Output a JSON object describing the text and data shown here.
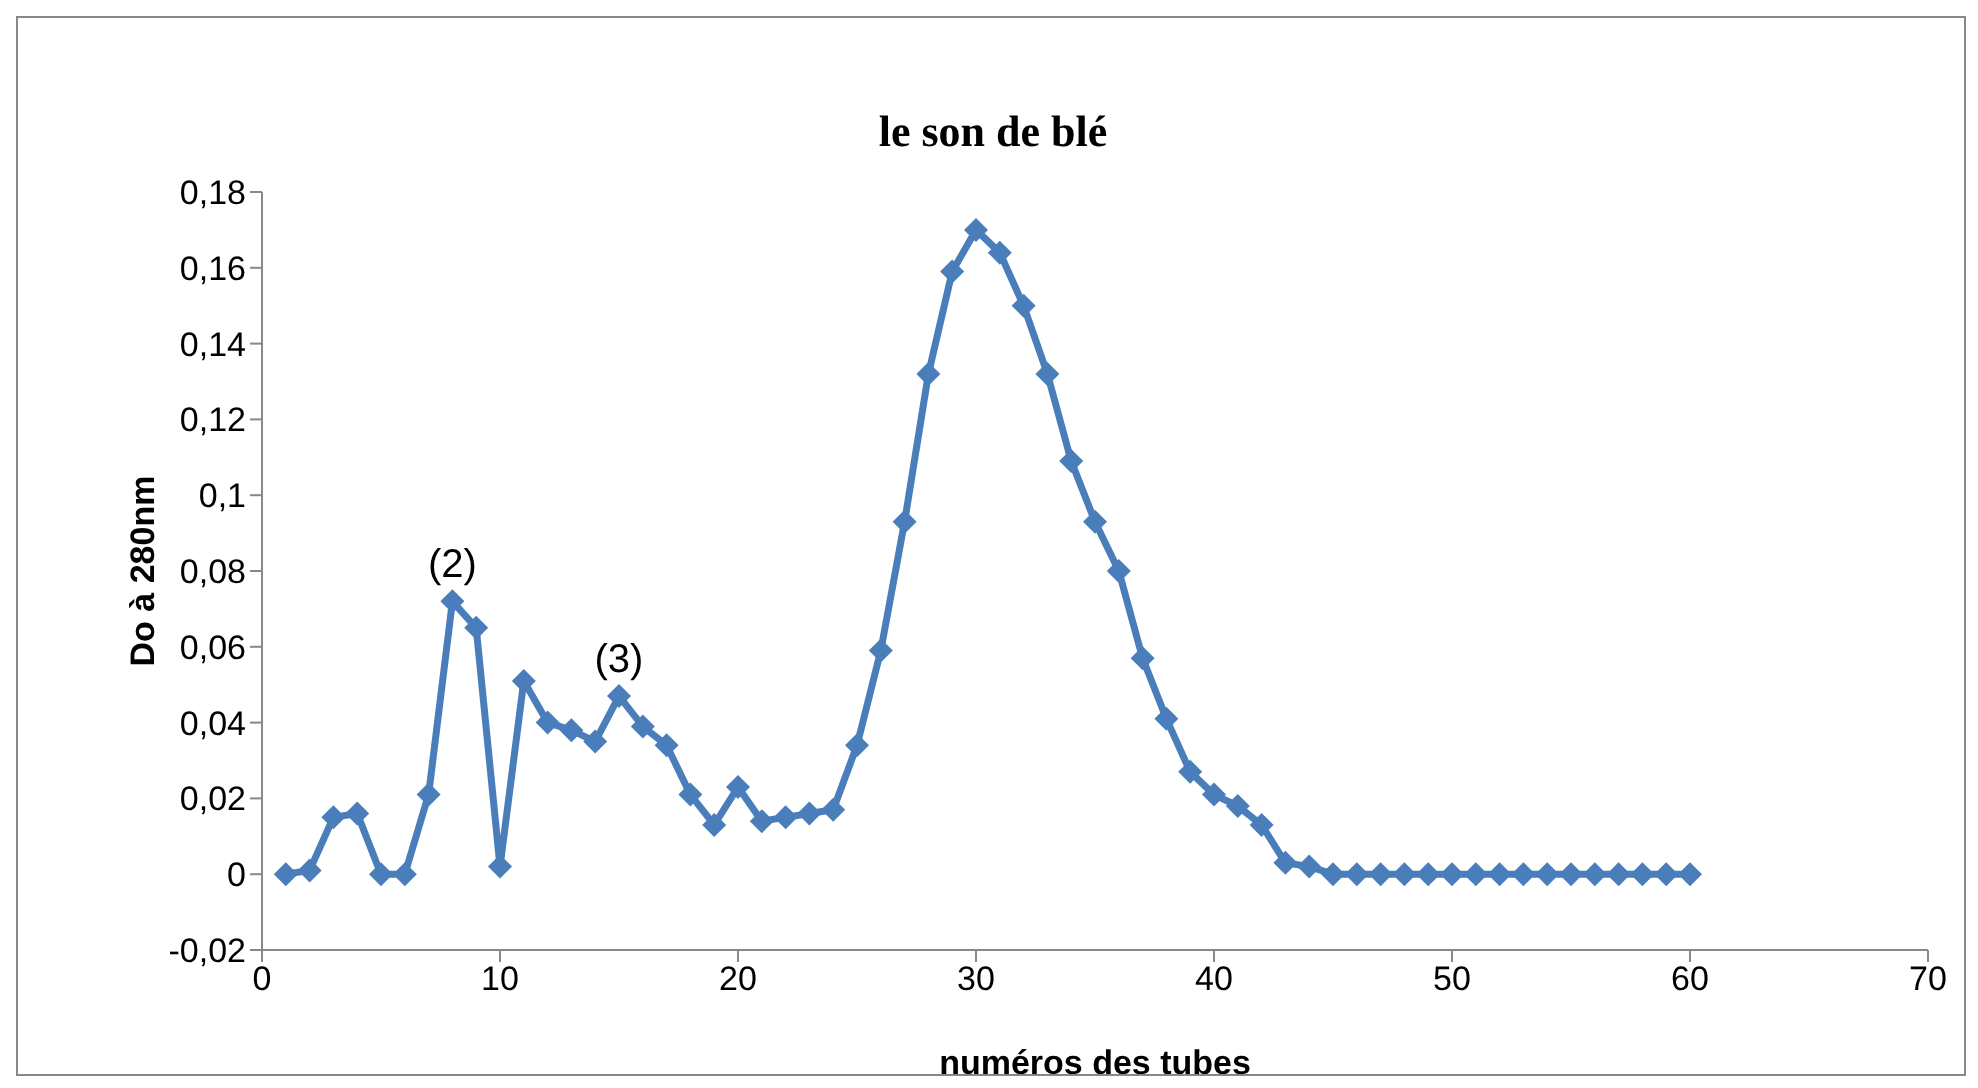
{
  "chart_data": {
    "type": "line",
    "title": "le son de blé",
    "xlabel": "numéros des tubes",
    "ylabel": "Do à 280nm",
    "x": [
      1,
      2,
      3,
      4,
      5,
      6,
      7,
      8,
      9,
      10,
      11,
      12,
      13,
      14,
      15,
      16,
      17,
      18,
      19,
      20,
      21,
      22,
      23,
      24,
      25,
      26,
      27,
      28,
      29,
      30,
      31,
      32,
      33,
      34,
      35,
      36,
      37,
      38,
      39,
      40,
      41,
      42,
      43,
      44,
      45,
      46,
      47,
      48,
      49,
      50,
      51,
      52,
      53,
      54,
      55,
      56,
      57,
      58,
      59,
      60
    ],
    "series": [
      {
        "color": "#4a7ebb",
        "values": [
          0,
          0.001,
          0.015,
          0.016,
          0,
          0,
          0.021,
          0.072,
          0.065,
          0.002,
          0.051,
          0.04,
          0.038,
          0.035,
          0.047,
          0.039,
          0.034,
          0.021,
          0.013,
          0.023,
          0.014,
          0.015,
          0.016,
          0.017,
          0.034,
          0.059,
          0.093,
          0.132,
          0.159,
          0.17,
          0.164,
          0.15,
          0.132,
          0.109,
          0.093,
          0.08,
          0.057,
          0.041,
          0.027,
          0.021,
          0.018,
          0.013,
          0.003,
          0.002,
          0,
          0,
          0,
          0,
          0,
          0,
          0,
          0,
          0,
          0,
          0,
          0,
          0,
          0,
          0,
          0
        ]
      }
    ],
    "xlim": [
      0,
      70
    ],
    "xticks": [
      0,
      10,
      20,
      30,
      40,
      50,
      60,
      70
    ],
    "ylim": [
      -0.02,
      0.18
    ],
    "yticks": [
      {
        "value": -0.02,
        "label": "-0,02"
      },
      {
        "value": 0,
        "label": "0"
      },
      {
        "value": 0.02,
        "label": "0,02"
      },
      {
        "value": 0.04,
        "label": "0,04"
      },
      {
        "value": 0.06,
        "label": "0,06"
      },
      {
        "value": 0.08,
        "label": "0,08"
      },
      {
        "value": 0.1,
        "label": "0,1"
      },
      {
        "value": 0.12,
        "label": "0,12"
      },
      {
        "value": 0.14,
        "label": "0,14"
      },
      {
        "value": 0.16,
        "label": "0,16"
      },
      {
        "value": 0.18,
        "label": "0,18"
      }
    ],
    "annotations": [
      {
        "text": "(2)",
        "x": 8,
        "y": 0.072
      },
      {
        "text": "(3)",
        "x": 15,
        "y": 0.047
      }
    ],
    "marker": "diamond",
    "line_style": "solid",
    "grid": false,
    "legend": false
  }
}
